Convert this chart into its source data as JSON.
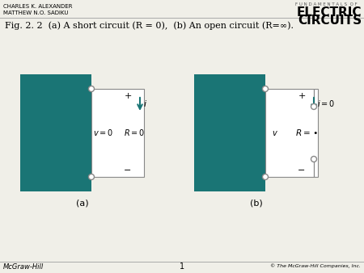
{
  "bg_color": "#f0efe8",
  "teal_color": "#1a7575",
  "line_color": "#888888",
  "title_text": "Fig. 2. 2  (a) A short circuit (R = 0),  (b) An open circuit (R=∞).",
  "header_left1": "CHARLES K. ALEXANDER",
  "header_left2": "MATTHEW N.O. SADIKU",
  "header_right_small": "F U N D A M E N T A L S  O F",
  "header_right_big1": "ELECTRIC",
  "header_right_big2": "CIRCUITS",
  "footer_left": "McGraw-Hill",
  "footer_center": "1",
  "footer_right": "© The McGraw-Hill Companies, Inc.",
  "label_a": "(a)",
  "label_b": "(b)"
}
